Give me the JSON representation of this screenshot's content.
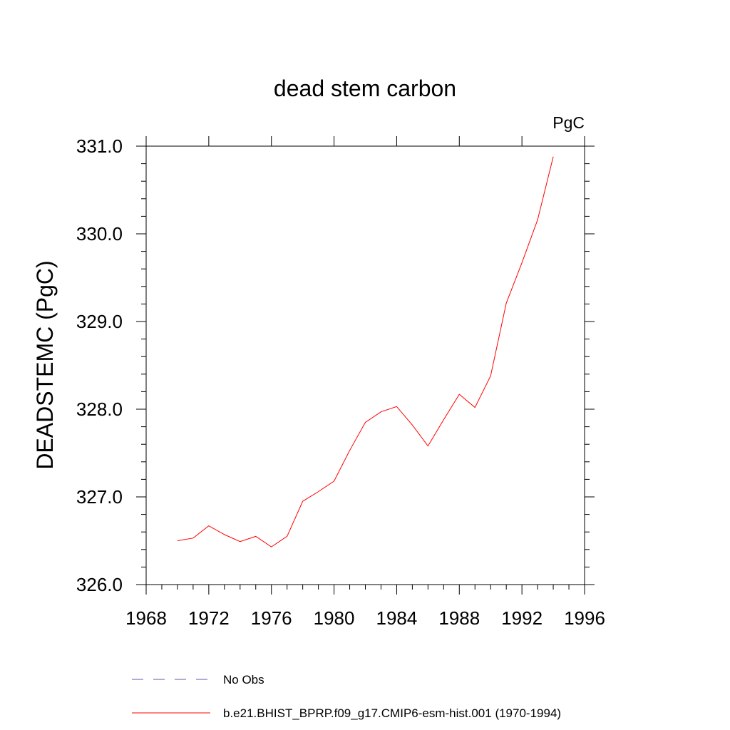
{
  "chart_data": {
    "type": "line",
    "title": "dead stem carbon",
    "units_label": "PgC",
    "xlabel": "",
    "ylabel": "DEADSTEMC  (PgC)",
    "xlim": [
      1968,
      1996
    ],
    "ylim": [
      326.0,
      331.0
    ],
    "x_ticks": [
      1968,
      1972,
      1976,
      1980,
      1984,
      1988,
      1992,
      1996
    ],
    "x_tick_labels": [
      "1968",
      "1972",
      "1976",
      "1980",
      "1984",
      "1988",
      "1992",
      "1996"
    ],
    "y_ticks": [
      326.0,
      327.0,
      328.0,
      329.0,
      330.0,
      331.0
    ],
    "y_tick_labels": [
      "326.0",
      "327.0",
      "328.0",
      "329.0",
      "330.0",
      "331.0"
    ],
    "grid": false,
    "legend_position": "bottom",
    "series": [
      {
        "name": "b.e21.BHIST_BPRP.f09_g17.CMIP6-esm-hist.001 (1970-1994)",
        "color": "#ff0000",
        "style": "solid",
        "x": [
          1970,
          1971,
          1972,
          1973,
          1974,
          1975,
          1976,
          1977,
          1978,
          1979,
          1980,
          1981,
          1982,
          1983,
          1984,
          1985,
          1986,
          1987,
          1988,
          1989,
          1990,
          1991,
          1992,
          1993,
          1994
        ],
        "values": [
          326.5,
          326.53,
          326.67,
          326.57,
          326.49,
          326.55,
          326.43,
          326.55,
          326.95,
          327.06,
          327.18,
          327.53,
          327.85,
          327.97,
          328.03,
          327.82,
          327.58,
          327.88,
          328.17,
          328.02,
          328.38,
          329.21,
          329.67,
          330.16,
          330.88
        ]
      }
    ],
    "legend": [
      {
        "label": "No Obs",
        "color": "#5a5ab4",
        "style": "dashed"
      },
      {
        "label": "b.e21.BHIST_BPRP.f09_g17.CMIP6-esm-hist.001 (1970-1994)",
        "color": "#ff0000",
        "style": "solid"
      }
    ]
  }
}
